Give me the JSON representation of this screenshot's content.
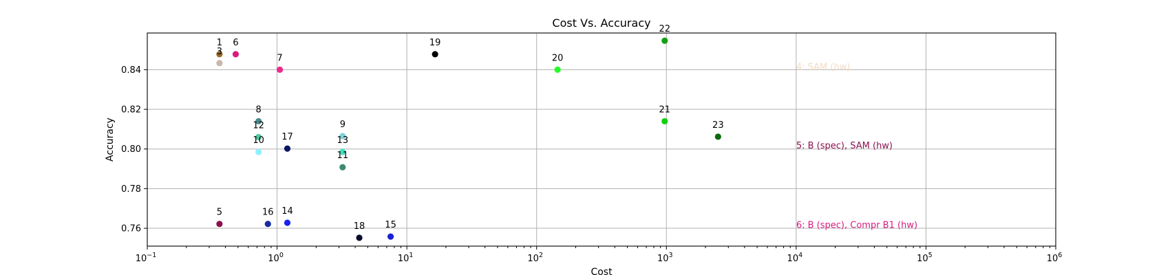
{
  "chart_data": {
    "type": "scatter",
    "title": "Cost Vs. Accuracy",
    "xlabel": "Cost",
    "ylabel": "Accuracy",
    "xscale": "log",
    "xlim": [
      0.1,
      1000000
    ],
    "ylim": [
      0.751,
      0.8585
    ],
    "grid": true,
    "x_ticks": [
      {
        "base": "10",
        "exp": "−1"
      },
      {
        "base": "10",
        "exp": "0"
      },
      {
        "base": "10",
        "exp": "1"
      },
      {
        "base": "10",
        "exp": "2"
      },
      {
        "base": "10",
        "exp": "3"
      },
      {
        "base": "10",
        "exp": "4"
      },
      {
        "base": "10",
        "exp": "5"
      },
      {
        "base": "10",
        "exp": "6"
      }
    ],
    "y_ticks": [
      "0.76",
      "0.78",
      "0.80",
      "0.82",
      "0.84"
    ],
    "y_tick_values": [
      0.76,
      0.78,
      0.8,
      0.82,
      0.84
    ],
    "points": [
      {
        "label": "1",
        "x": 0.36,
        "y": 0.8478,
        "color": "#9a6a2a"
      },
      {
        "label": "3",
        "x": 0.36,
        "y": 0.8433,
        "color": "#c7b8ac"
      },
      {
        "label": "6",
        "x": 0.48,
        "y": 0.8478,
        "color": "#d81b7f"
      },
      {
        "label": "7",
        "x": 1.05,
        "y": 0.84,
        "color": "#f0288c"
      },
      {
        "label": "8",
        "x": 0.72,
        "y": 0.814,
        "color": "#4a8a8a"
      },
      {
        "label": "12",
        "x": 0.72,
        "y": 0.806,
        "color": "#50c8a0"
      },
      {
        "label": "10",
        "x": 0.72,
        "y": 0.7985,
        "color": "#8ef0ff"
      },
      {
        "label": "17",
        "x": 1.2,
        "y": 0.8002,
        "color": "#0b1760"
      },
      {
        "label": "9",
        "x": 3.2,
        "y": 0.8065,
        "color": "#7fd0d8"
      },
      {
        "label": "13",
        "x": 3.2,
        "y": 0.7985,
        "color": "#40e0c0"
      },
      {
        "label": "11",
        "x": 3.2,
        "y": 0.7908,
        "color": "#3f8a70"
      },
      {
        "label": "19",
        "x": 16.5,
        "y": 0.8478,
        "color": "#000000"
      },
      {
        "label": "20",
        "x": 145,
        "y": 0.84,
        "color": "#22ff22"
      },
      {
        "label": "22",
        "x": 970,
        "y": 0.8546,
        "color": "#12a012"
      },
      {
        "label": "21",
        "x": 970,
        "y": 0.814,
        "color": "#10d010"
      },
      {
        "label": "23",
        "x": 2500,
        "y": 0.8062,
        "color": "#0e6b0e"
      },
      {
        "label": "5",
        "x": 0.36,
        "y": 0.7622,
        "color": "#8b1050"
      },
      {
        "label": "16",
        "x": 0.85,
        "y": 0.7622,
        "color": "#1a2aa0"
      },
      {
        "label": "14",
        "x": 1.2,
        "y": 0.7628,
        "color": "#1a20f0"
      },
      {
        "label": "18",
        "x": 4.3,
        "y": 0.7552,
        "color": "#0a0a2a"
      },
      {
        "label": "15",
        "x": 7.5,
        "y": 0.7558,
        "color": "#1a20d8"
      }
    ],
    "annotations": [
      {
        "text": "4:  SAM (hw)",
        "x": 10000,
        "y": 0.8415,
        "color": "#f2dcc4"
      },
      {
        "text": "5:  B (spec), SAM (hw)",
        "x": 10000,
        "y": 0.8018,
        "color": "#8b1050"
      },
      {
        "text": "6:  B (spec), Compr B1 (hw)",
        "x": 10000,
        "y": 0.7618,
        "color": "#d81b7f"
      }
    ]
  }
}
